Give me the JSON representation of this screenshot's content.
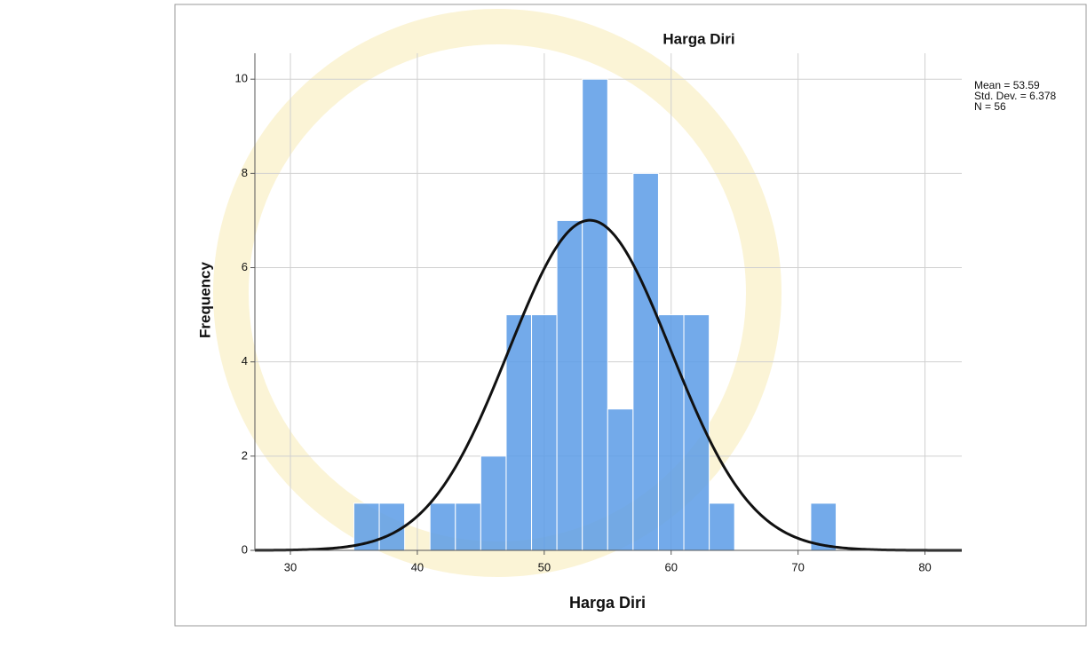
{
  "chart_data": {
    "type": "histogram",
    "title": "Harga Diri",
    "x_label": "Harga Diri",
    "y_label": "Frequency",
    "bins": [
      35,
      37,
      39,
      41,
      43,
      45,
      47,
      49,
      51,
      53,
      55,
      57,
      59,
      61,
      63,
      65,
      67,
      69,
      71,
      73
    ],
    "values": [
      1,
      1,
      0,
      1,
      1,
      2,
      5,
      5,
      7,
      10,
      3,
      8,
      5,
      5,
      1,
      0,
      0,
      0,
      1
    ],
    "color": "#5b9be6",
    "curve_color": "#111111",
    "stats": [
      {
        "value": 53.59,
        "label": "Mean = 53.59"
      },
      {
        "value": 6.378,
        "label": "Std. Dev. = 6.378"
      },
      {
        "value": 56,
        "label": "N = 56"
      }
    ],
    "xlim": [
      27.2,
      82.9
    ],
    "ylim": [
      0,
      10.55
    ],
    "xticks": [
      30,
      40,
      50,
      60,
      70,
      80
    ],
    "yticks": [
      0,
      2,
      4,
      6,
      8,
      10
    ],
    "grid": true
  }
}
